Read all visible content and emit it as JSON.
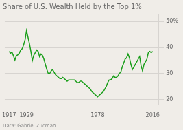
{
  "chart_data": {
    "type": "line",
    "title": "Share of U.S. Wealth Held by the Top 1%",
    "annotations": [
      "Data: Gabriel Zucman"
    ],
    "color": "#1a9e1a",
    "grid": "y",
    "xlim": [
      1914,
      2020
    ],
    "xticks": [
      1917,
      1929,
      1978,
      2016
    ],
    "ylim": [
      18,
      53
    ],
    "yticks": [
      20,
      30,
      40,
      {
        "value": 50,
        "label": "50%"
      }
    ],
    "x": [
      1917,
      1918,
      1919,
      1920,
      1921,
      1922,
      1923,
      1924,
      1925,
      1926,
      1927,
      1928,
      1929,
      1930,
      1931,
      1932,
      1933,
      1934,
      1935,
      1936,
      1937,
      1938,
      1939,
      1940,
      1941,
      1942,
      1943,
      1944,
      1945,
      1946,
      1947,
      1948,
      1949,
      1950,
      1951,
      1952,
      1953,
      1954,
      1955,
      1956,
      1957,
      1958,
      1959,
      1960,
      1961,
      1962,
      1963,
      1964,
      1965,
      1966,
      1967,
      1968,
      1969,
      1970,
      1971,
      1972,
      1973,
      1974,
      1975,
      1976,
      1977,
      1978,
      1979,
      1980,
      1981,
      1982,
      1983,
      1984,
      1985,
      1986,
      1987,
      1988,
      1989,
      1990,
      1991,
      1992,
      1993,
      1994,
      1995,
      1996,
      1997,
      1998,
      1999,
      2000,
      2001,
      2002,
      2003,
      2004,
      2005,
      2006,
      2007,
      2008,
      2009,
      2010,
      2011,
      2012,
      2013,
      2014,
      2015,
      2016
    ],
    "values": [
      38.5,
      37.8,
      38.2,
      36.8,
      35.2,
      36.8,
      37.2,
      37.8,
      39.0,
      39.5,
      41.0,
      43.0,
      46.5,
      44.0,
      41.5,
      38.5,
      35.0,
      37.0,
      38.0,
      39.0,
      38.5,
      36.5,
      37.5,
      37.0,
      35.5,
      33.5,
      31.5,
      30.0,
      30.0,
      31.0,
      31.5,
      30.5,
      29.5,
      29.0,
      28.5,
      28.0,
      28.0,
      28.5,
      28.0,
      27.5,
      27.0,
      27.5,
      27.5,
      27.5,
      27.5,
      27.5,
      27.0,
      26.5,
      26.5,
      27.0,
      27.0,
      26.5,
      26.0,
      25.5,
      25.0,
      24.5,
      24.0,
      23.0,
      22.5,
      22.0,
      21.5,
      21.0,
      21.5,
      22.0,
      22.5,
      23.0,
      24.0,
      25.0,
      26.5,
      27.5,
      27.5,
      28.0,
      29.0,
      28.5,
      28.5,
      29.0,
      30.0,
      30.5,
      32.5,
      34.0,
      35.5,
      36.0,
      37.5,
      36.0,
      33.5,
      31.5,
      32.5,
      33.5,
      34.5,
      35.5,
      36.5,
      33.0,
      31.0,
      33.5,
      34.5,
      35.5,
      38.0,
      38.5,
      38.0,
      38.5
    ]
  }
}
